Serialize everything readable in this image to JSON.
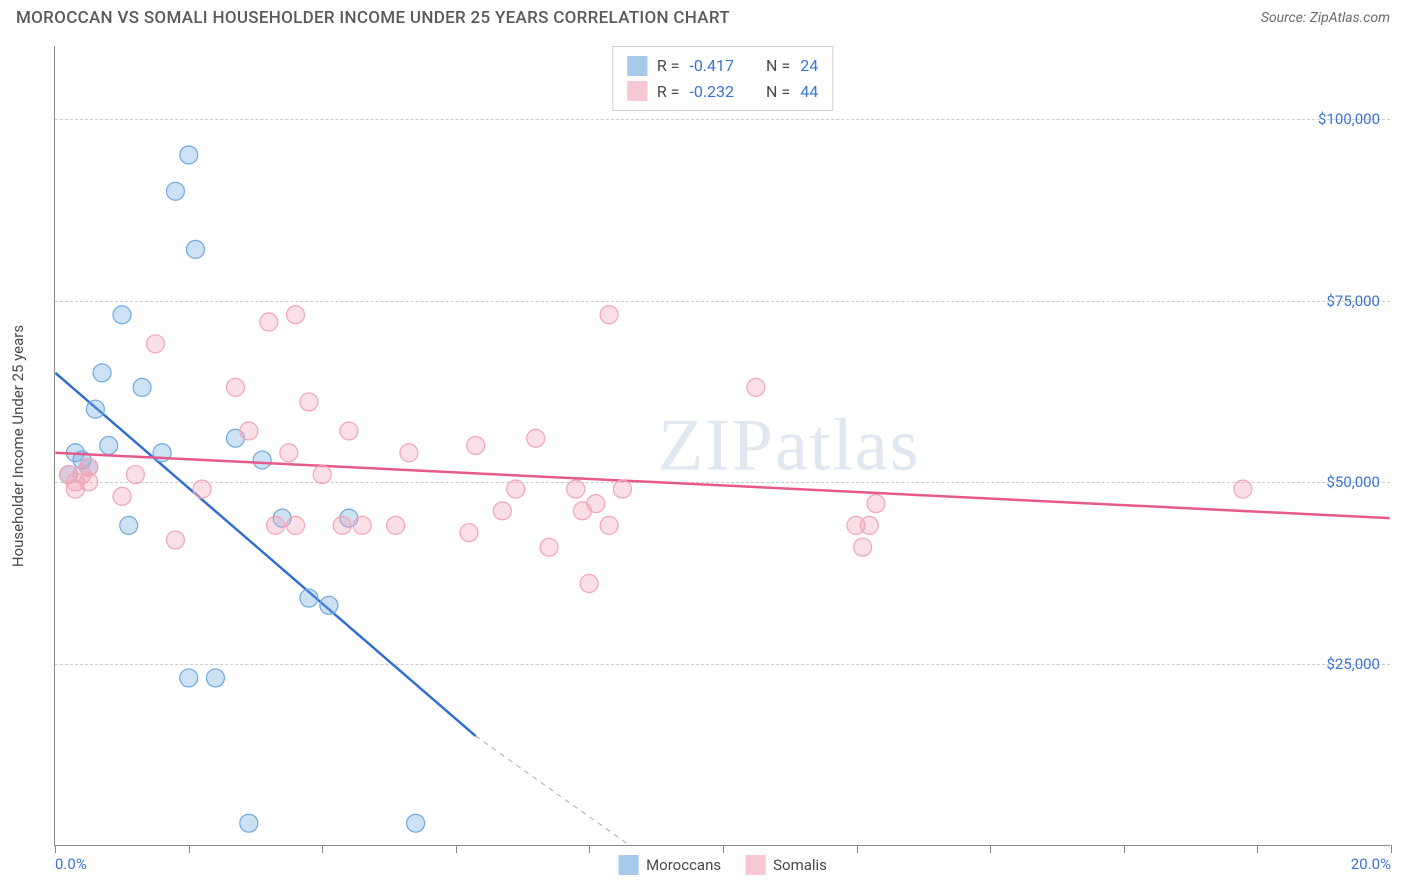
{
  "header": {
    "title": "MOROCCAN VS SOMALI HOUSEHOLDER INCOME UNDER 25 YEARS CORRELATION CHART",
    "source": "Source: ZipAtlas.com"
  },
  "watermark": "ZIPatlas",
  "chart": {
    "type": "scatter_with_regression",
    "xlabel": null,
    "ylabel": "Householder Income Under 25 years",
    "xlim": [
      0,
      20
    ],
    "ylim": [
      0,
      110000
    ],
    "xticks": [
      0,
      2,
      4,
      6,
      8,
      10,
      12,
      14,
      16,
      18,
      20
    ],
    "xtick_labels": {
      "0": "0.0%",
      "20": "20.0%"
    },
    "yticks": [
      25000,
      50000,
      75000,
      100000
    ],
    "ytick_labels": {
      "25000": "$25,000",
      "50000": "$50,000",
      "75000": "$75,000",
      "100000": "$100,000"
    },
    "grid_color": "#cccccc",
    "axis_color": "#888888",
    "label_color": "#3973d6",
    "ylabel_color": "#4a4a4a",
    "ylabel_fontsize": 15,
    "tick_fontsize": 15,
    "background_color": "#ffffff",
    "marker_radius": 9,
    "marker_fill_opacity": 0.35,
    "marker_stroke_width": 1.2,
    "line_width": 2.5,
    "series": [
      {
        "name": "Moroccans",
        "color": "#6ea8e0",
        "line_color": "#2e6fd1",
        "R": "-0.417",
        "N": "24",
        "regression": {
          "x1": 0,
          "y1": 65000,
          "x2": 6.3,
          "y2": 15000,
          "extend_dashed_to": {
            "x": 8.6,
            "y": 0
          }
        },
        "points": [
          {
            "x": 0.2,
            "y": 51000
          },
          {
            "x": 0.3,
            "y": 54000
          },
          {
            "x": 0.4,
            "y": 53000
          },
          {
            "x": 0.5,
            "y": 52000
          },
          {
            "x": 0.6,
            "y": 60000
          },
          {
            "x": 0.7,
            "y": 65000
          },
          {
            "x": 0.8,
            "y": 55000
          },
          {
            "x": 1.0,
            "y": 73000
          },
          {
            "x": 1.1,
            "y": 44000
          },
          {
            "x": 1.3,
            "y": 63000
          },
          {
            "x": 1.6,
            "y": 54000
          },
          {
            "x": 2.0,
            "y": 95000
          },
          {
            "x": 1.8,
            "y": 90000
          },
          {
            "x": 2.1,
            "y": 82000
          },
          {
            "x": 2.4,
            "y": 23000
          },
          {
            "x": 2.0,
            "y": 23000
          },
          {
            "x": 2.7,
            "y": 56000
          },
          {
            "x": 3.1,
            "y": 53000
          },
          {
            "x": 3.8,
            "y": 34000
          },
          {
            "x": 4.1,
            "y": 33000
          },
          {
            "x": 4.4,
            "y": 45000
          },
          {
            "x": 2.9,
            "y": 3000
          },
          {
            "x": 5.4,
            "y": 3000
          },
          {
            "x": 3.4,
            "y": 45000
          }
        ]
      },
      {
        "name": "Somalis",
        "color": "#f2a3b7",
        "line_color": "#e55a8a",
        "R": "-0.232",
        "N": "44",
        "regression": {
          "x1": 0,
          "y1": 54000,
          "x2": 20,
          "y2": 45000
        },
        "points": [
          {
            "x": 0.2,
            "y": 51000
          },
          {
            "x": 0.3,
            "y": 49000
          },
          {
            "x": 0.3,
            "y": 50000
          },
          {
            "x": 0.4,
            "y": 51000
          },
          {
            "x": 0.5,
            "y": 52000
          },
          {
            "x": 0.5,
            "y": 50000
          },
          {
            "x": 1.0,
            "y": 48000
          },
          {
            "x": 1.2,
            "y": 51000
          },
          {
            "x": 1.5,
            "y": 69000
          },
          {
            "x": 1.8,
            "y": 42000
          },
          {
            "x": 2.2,
            "y": 49000
          },
          {
            "x": 2.7,
            "y": 63000
          },
          {
            "x": 2.9,
            "y": 57000
          },
          {
            "x": 3.2,
            "y": 72000
          },
          {
            "x": 3.5,
            "y": 54000
          },
          {
            "x": 3.6,
            "y": 73000
          },
          {
            "x": 3.8,
            "y": 61000
          },
          {
            "x": 3.3,
            "y": 44000
          },
          {
            "x": 3.6,
            "y": 44000
          },
          {
            "x": 4.0,
            "y": 51000
          },
          {
            "x": 4.3,
            "y": 44000
          },
          {
            "x": 4.4,
            "y": 57000
          },
          {
            "x": 4.6,
            "y": 44000
          },
          {
            "x": 5.3,
            "y": 54000
          },
          {
            "x": 5.1,
            "y": 44000
          },
          {
            "x": 6.2,
            "y": 43000
          },
          {
            "x": 6.3,
            "y": 55000
          },
          {
            "x": 6.7,
            "y": 46000
          },
          {
            "x": 6.9,
            "y": 49000
          },
          {
            "x": 7.2,
            "y": 56000
          },
          {
            "x": 7.4,
            "y": 41000
          },
          {
            "x": 7.8,
            "y": 49000
          },
          {
            "x": 7.9,
            "y": 46000
          },
          {
            "x": 8.3,
            "y": 73000
          },
          {
            "x": 8.3,
            "y": 44000
          },
          {
            "x": 8.0,
            "y": 36000
          },
          {
            "x": 8.1,
            "y": 47000
          },
          {
            "x": 10.5,
            "y": 63000
          },
          {
            "x": 12.0,
            "y": 44000
          },
          {
            "x": 12.2,
            "y": 44000
          },
          {
            "x": 12.3,
            "y": 47000
          },
          {
            "x": 12.1,
            "y": 41000
          },
          {
            "x": 17.8,
            "y": 49000
          },
          {
            "x": 8.5,
            "y": 49000
          }
        ]
      }
    ]
  },
  "legend": {
    "R_label": "R =",
    "N_label": "N ="
  }
}
